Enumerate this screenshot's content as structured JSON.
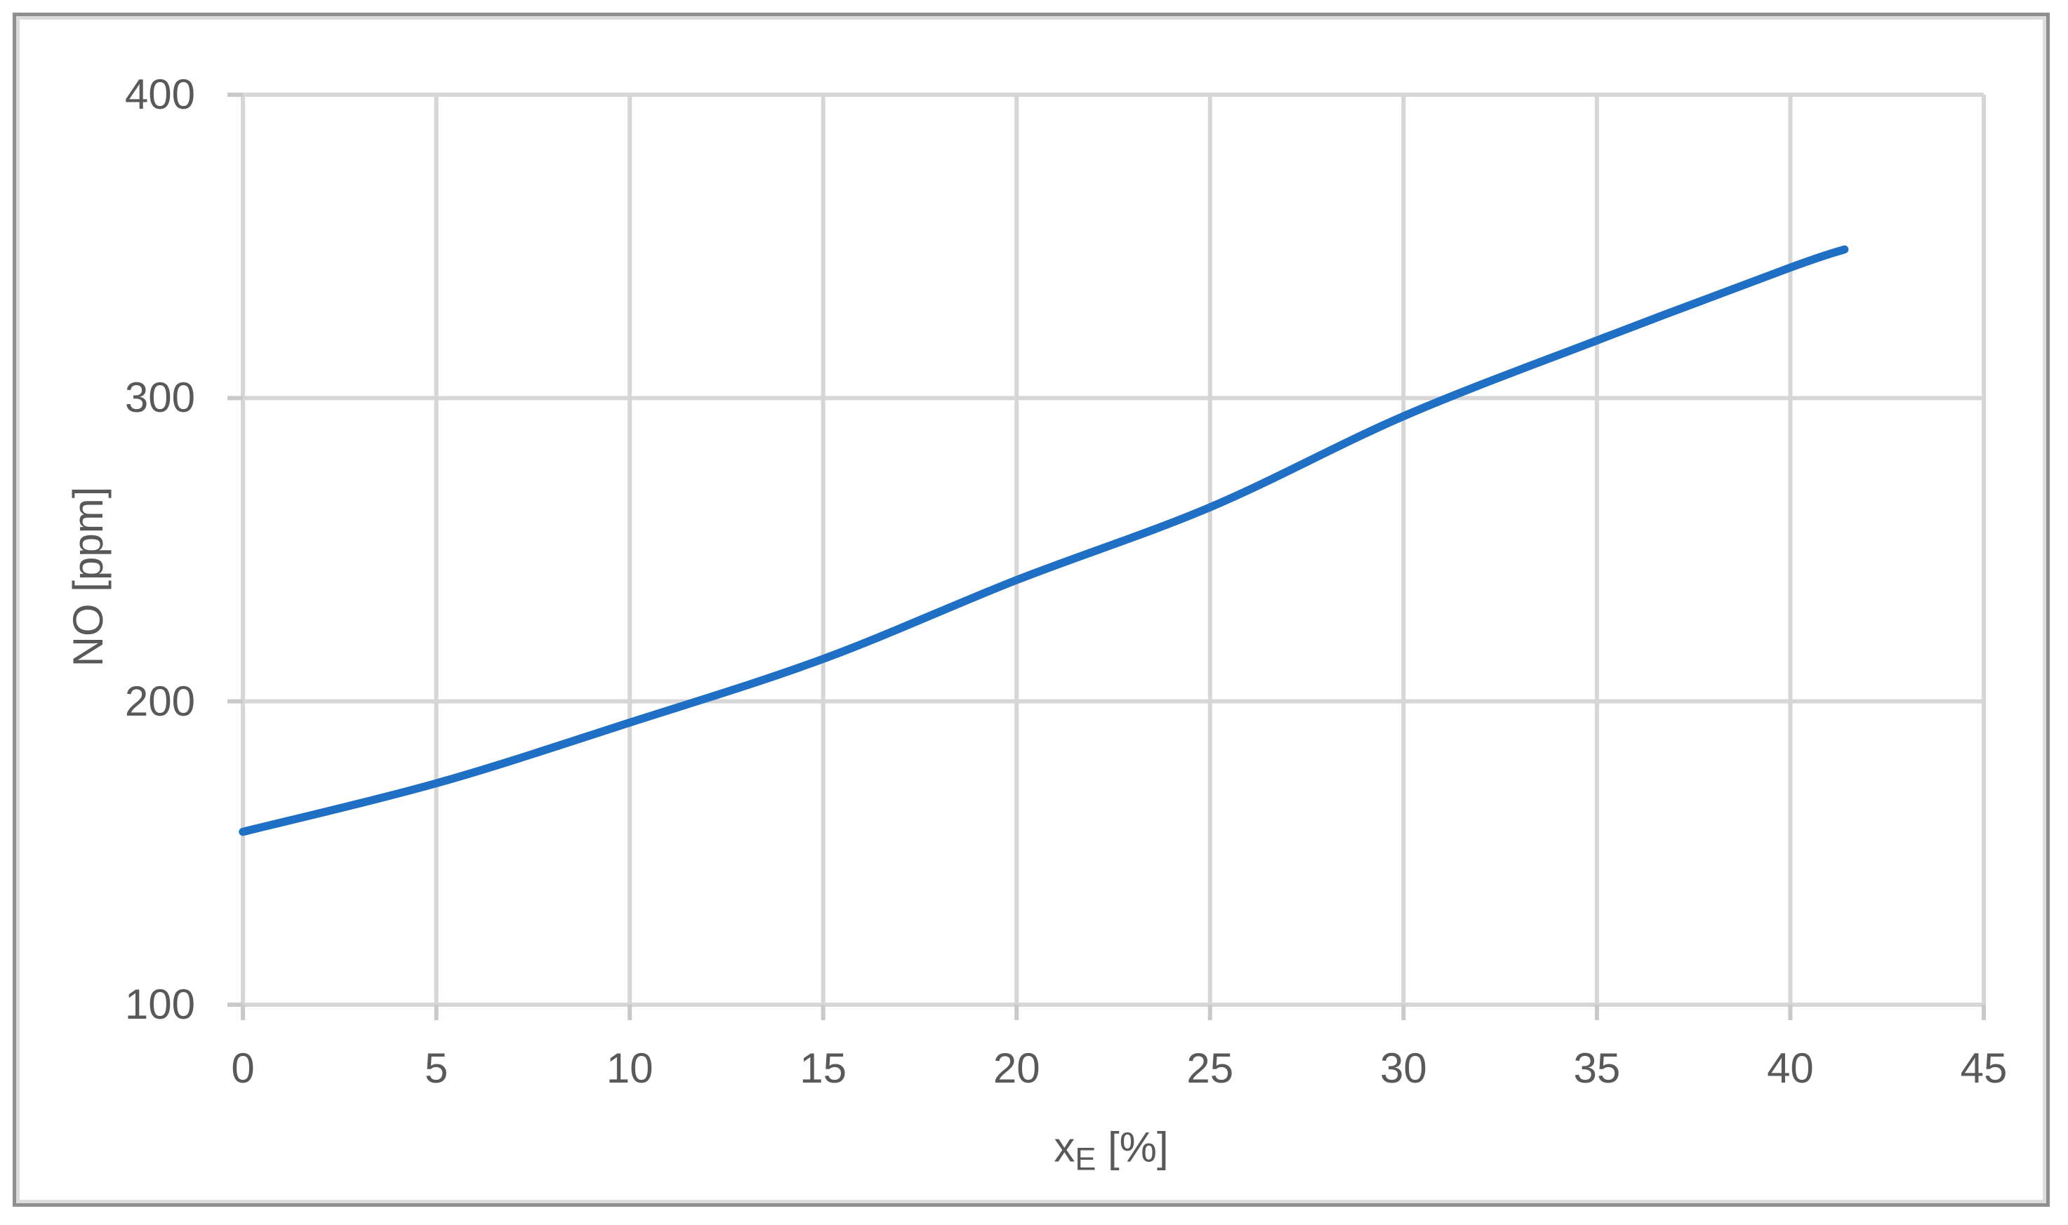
{
  "chart_data": {
    "type": "line",
    "title": "",
    "xlabel_base": "x",
    "xlabel_sub": "E",
    "xlabel_unit": " [%]",
    "ylabel": "NO [ppm]",
    "series": [
      {
        "name": "NO",
        "points": [
          [
            0,
            157
          ],
          [
            5,
            173
          ],
          [
            10,
            193
          ],
          [
            15,
            214
          ],
          [
            20,
            240
          ],
          [
            25,
            264
          ],
          [
            30,
            294
          ],
          [
            35,
            319
          ],
          [
            40,
            343
          ],
          [
            41.4,
            349
          ]
        ]
      }
    ],
    "xlim": [
      0,
      45
    ],
    "ylim": [
      100,
      400
    ],
    "xticks": [
      0,
      5,
      10,
      15,
      20,
      25,
      30,
      35,
      40,
      45
    ],
    "yticks": [
      100,
      200,
      300,
      400
    ],
    "grid": true,
    "legend": false,
    "smooth": true,
    "colors": {
      "line": "#1f6fc5",
      "gridline": "#d6d6d6",
      "axis": "#c9c9c9",
      "text": "#595959",
      "frame_border": "#8f8f8f",
      "frame_inner": "#dcdcdc",
      "background": "#ffffff"
    }
  }
}
